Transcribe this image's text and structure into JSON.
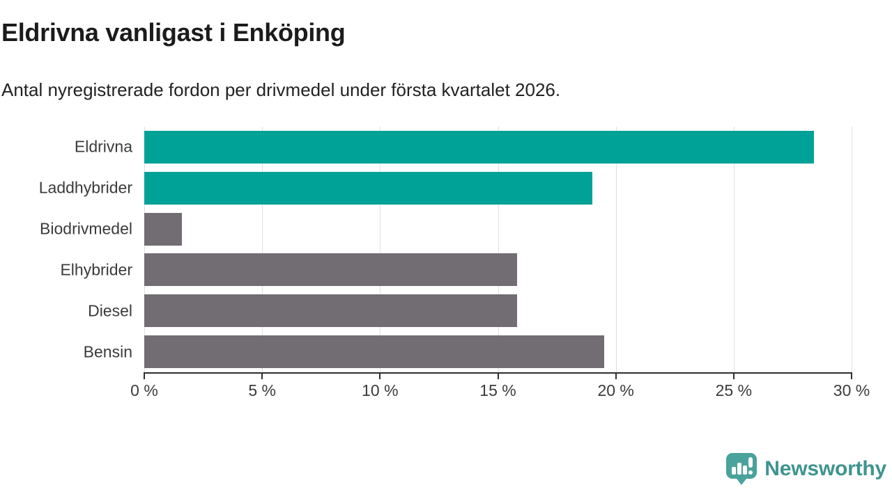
{
  "header": {
    "title": "Eldrivna vanligast i Enköping",
    "subtitle": "Antal nyregistrerade fordon per drivmedel under första kvartalet 2026."
  },
  "chart_data": {
    "type": "bar",
    "orientation": "horizontal",
    "title": "Eldrivna vanligast i Enköping",
    "subtitle": "Antal nyregistrerade fordon per drivmedel under första kvartalet 2026.",
    "categories": [
      "Eldrivna",
      "Laddhybrider",
      "Biodrivmedel",
      "Elhybrider",
      "Diesel",
      "Bensin"
    ],
    "values": [
      28.4,
      19.0,
      1.6,
      15.8,
      15.8,
      19.5
    ],
    "unit": "%",
    "bar_colors": [
      "#00a297",
      "#00a297",
      "#716d72",
      "#716d72",
      "#716d72",
      "#716d72"
    ],
    "highlight_color": "#00a297",
    "default_color": "#716d72",
    "xlim": [
      0,
      30
    ],
    "x_ticks": [
      0,
      5,
      10,
      15,
      20,
      25,
      30
    ],
    "x_tick_labels": [
      "0 %",
      "5 %",
      "10 %",
      "15 %",
      "20 %",
      "25 %",
      "30 %"
    ],
    "grid": true,
    "legend": "none"
  },
  "footer": {
    "brand": "Newsworthy",
    "logo_icon": "newsworthy-speech-bubble-bar-chart-icon",
    "brand_color": "#3e948f",
    "icon_color": "#4aa29c"
  }
}
